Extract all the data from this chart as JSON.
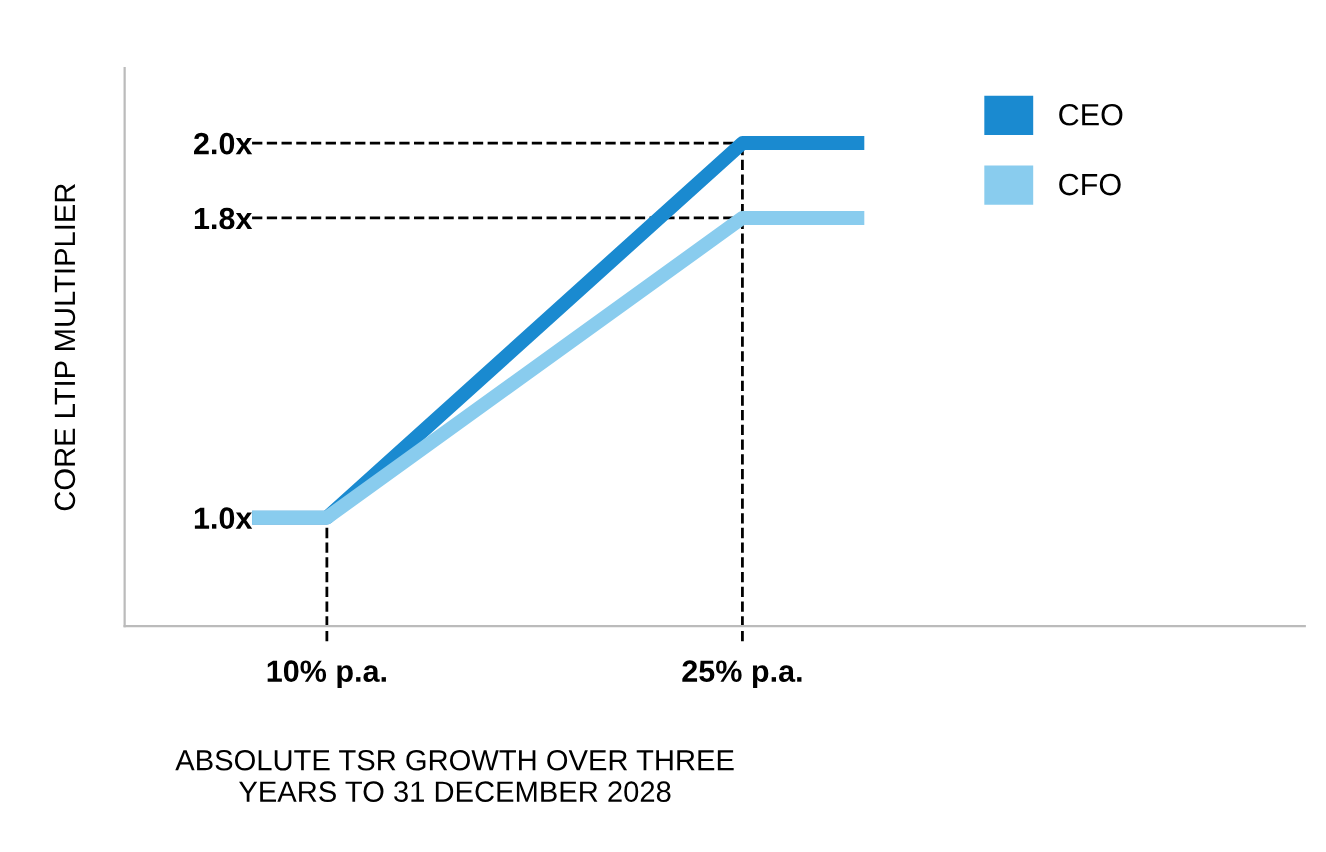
{
  "chart_data": {
    "type": "line",
    "xlabel": "ABSOLUTE TSR GROWTH OVER THREE\nYEARS TO 31 DECEMBER 2028",
    "ylabel": "CORE LTIP MULTIPLIER",
    "series": [
      {
        "name": "CEO",
        "color": "#1a8ad0",
        "x": [
          7.3,
          10,
          25,
          29.4
        ],
        "values": [
          1.0,
          1.0,
          2.0,
          2.0
        ]
      },
      {
        "name": "CFO",
        "color": "#89ccee",
        "x": [
          7.3,
          10,
          25,
          29.4
        ],
        "values": [
          1.0,
          1.0,
          1.8,
          1.8
        ]
      }
    ],
    "xlim": [
      2.7,
      45.3
    ],
    "ylim": [
      0.71,
      2.2
    ],
    "xticks": [
      {
        "value": 10,
        "label": "10% p.a."
      },
      {
        "value": 25,
        "label": "25% p.a."
      }
    ],
    "yticks": [
      {
        "value": 1.0,
        "label": "1.0x"
      },
      {
        "value": 1.8,
        "label": "1.8x"
      },
      {
        "value": 2.0,
        "label": "2.0x"
      }
    ],
    "ref_lines": [
      {
        "axis": "y",
        "value": 2.0,
        "line_style": "dashed",
        "color": "#000000"
      },
      {
        "axis": "y",
        "value": 1.8,
        "line_style": "dashed",
        "color": "#000000"
      },
      {
        "axis": "x",
        "value": 10,
        "line_style": "dashed",
        "color": "#000000"
      },
      {
        "axis": "x",
        "value": 25,
        "line_style": "dashed",
        "color": "#000000"
      }
    ],
    "legend": "top right",
    "grid": false,
    "marker": "none",
    "line_style": "solid"
  }
}
